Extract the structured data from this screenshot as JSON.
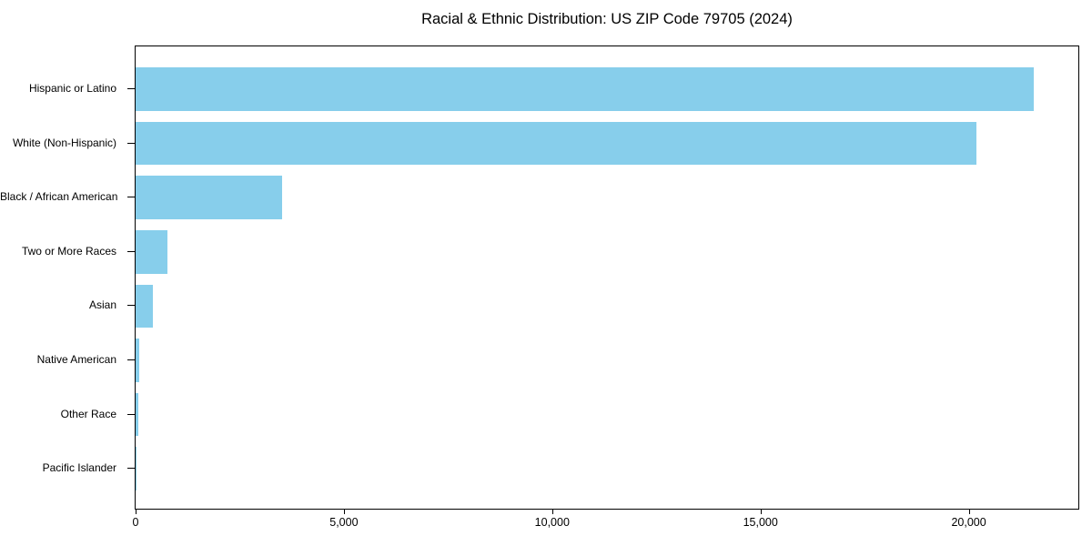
{
  "chart_data": {
    "type": "bar",
    "orientation": "horizontal",
    "title": "Racial & Ethnic Distribution: US ZIP Code 79705 (2024)",
    "categories": [
      "Hispanic or Latino",
      "White (Non-Hispanic)",
      "Black / African American",
      "Two or More Races",
      "Asian",
      "Native American",
      "Other Race",
      "Pacific Islander"
    ],
    "values": [
      21550,
      20180,
      3520,
      760,
      420,
      90,
      60,
      10
    ],
    "xlabel": "",
    "ylabel": "",
    "xlim": [
      0,
      22630
    ],
    "x_ticks": [
      {
        "value": 0,
        "label": "0"
      },
      {
        "value": 5000,
        "label": "5,000"
      },
      {
        "value": 10000,
        "label": "10,000"
      },
      {
        "value": 15000,
        "label": "15,000"
      },
      {
        "value": 20000,
        "label": "20,000"
      }
    ],
    "grid": false,
    "legend": false,
    "bar_color": "#87CEEB",
    "axis_color": "#000000",
    "background_color": "#ffffff"
  }
}
